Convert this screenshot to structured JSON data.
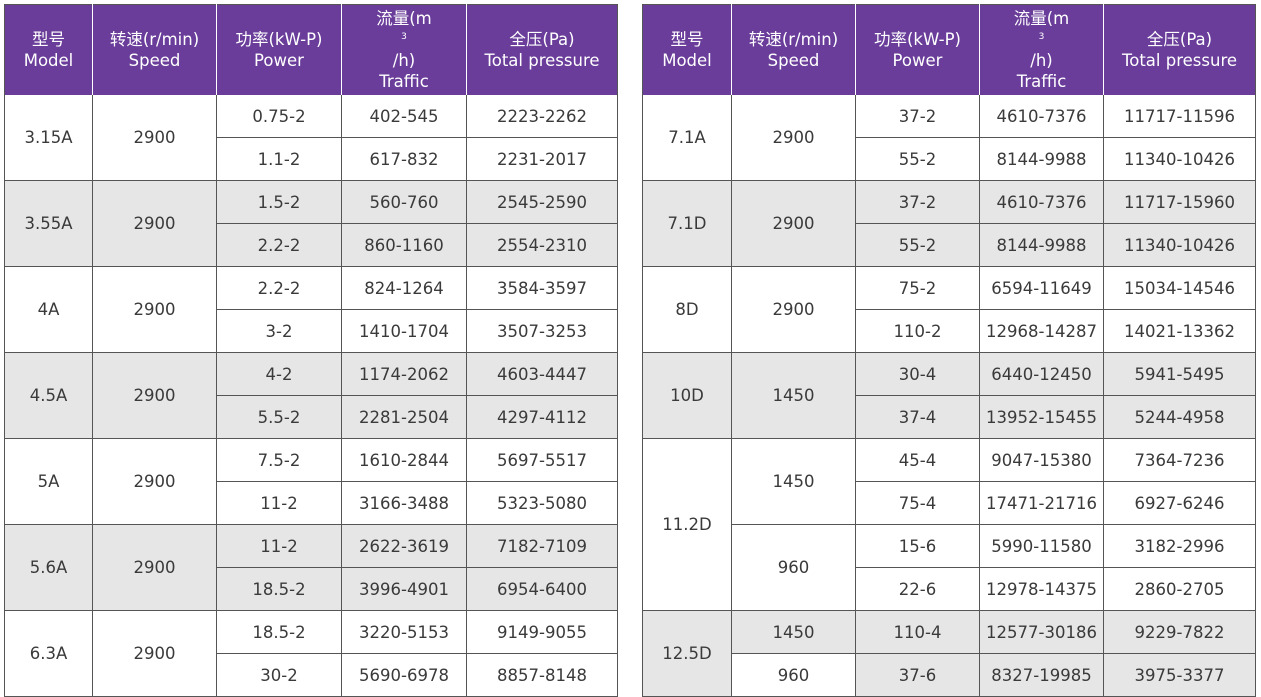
{
  "headers": [
    {
      "zh": "型号",
      "en": "Model"
    },
    {
      "zh": "转速(r/min)",
      "en": "Speed"
    },
    {
      "zh": "功率(kW-P)",
      "en": "Power"
    },
    {
      "zh": "流量(m",
      "sup": "3",
      "zh_tail": "/h)",
      "en": "Traffic"
    },
    {
      "zh": "全压(Pa)",
      "en": "Total pressure"
    }
  ],
  "left_groups": [
    {
      "model": "3.15A",
      "speed": "2900",
      "rows": [
        {
          "power": "0.75-2",
          "traffic": "402-545",
          "pressure": "2223-2262"
        },
        {
          "power": "1.1-2",
          "traffic": "617-832",
          "pressure": "2231-2017"
        }
      ]
    },
    {
      "model": "3.55A",
      "speed": "2900",
      "rows": [
        {
          "power": "1.5-2",
          "traffic": "560-760",
          "pressure": "2545-2590"
        },
        {
          "power": "2.2-2",
          "traffic": "860-1160",
          "pressure": "2554-2310"
        }
      ]
    },
    {
      "model": "4A",
      "speed": "2900",
      "rows": [
        {
          "power": "2.2-2",
          "traffic": "824-1264",
          "pressure": "3584-3597"
        },
        {
          "power": "3-2",
          "traffic": "1410-1704",
          "pressure": "3507-3253"
        }
      ]
    },
    {
      "model": "4.5A",
      "speed": "2900",
      "rows": [
        {
          "power": "4-2",
          "traffic": "1174-2062",
          "pressure": "4603-4447"
        },
        {
          "power": "5.5-2",
          "traffic": "2281-2504",
          "pressure": "4297-4112"
        }
      ]
    },
    {
      "model": "5A",
      "speed": "2900",
      "rows": [
        {
          "power": "7.5-2",
          "traffic": "1610-2844",
          "pressure": "5697-5517"
        },
        {
          "power": "11-2",
          "traffic": "3166-3488",
          "pressure": "5323-5080"
        }
      ]
    },
    {
      "model": "5.6A",
      "speed": "2900",
      "rows": [
        {
          "power": "11-2",
          "traffic": "2622-3619",
          "pressure": "7182-7109"
        },
        {
          "power": "18.5-2",
          "traffic": "3996-4901",
          "pressure": "6954-6400"
        }
      ]
    },
    {
      "model": "6.3A",
      "speed": "2900",
      "rows": [
        {
          "power": "18.5-2",
          "traffic": "3220-5153",
          "pressure": "9149-9055"
        },
        {
          "power": "30-2",
          "traffic": "5690-6978",
          "pressure": "8857-8148"
        }
      ]
    }
  ],
  "right_simple_groups": [
    {
      "model": "7.1A",
      "speed": "2900",
      "rows": [
        {
          "power": "37-2",
          "traffic": "4610-7376",
          "pressure": "11717-11596"
        },
        {
          "power": "55-2",
          "traffic": "8144-9988",
          "pressure": "11340-10426"
        }
      ]
    },
    {
      "model": "7.1D",
      "speed": "2900",
      "rows": [
        {
          "power": "37-2",
          "traffic": "4610-7376",
          "pressure": "11717-15960"
        },
        {
          "power": "55-2",
          "traffic": "8144-9988",
          "pressure": "11340-10426"
        }
      ]
    },
    {
      "model": "8D",
      "speed": "2900",
      "rows": [
        {
          "power": "75-2",
          "traffic": "6594-11649",
          "pressure": "15034-14546"
        },
        {
          "power": "110-2",
          "traffic": "12968-14287",
          "pressure": "14021-13362"
        }
      ]
    },
    {
      "model": "10D",
      "speed": "1450",
      "rows": [
        {
          "power": "30-4",
          "traffic": "6440-12450",
          "pressure": "5941-5495"
        },
        {
          "power": "37-4",
          "traffic": "13952-15455",
          "pressure": "5244-4958"
        }
      ]
    }
  ],
  "group_11_2d": {
    "model": "11.2D",
    "speed_a": "1450",
    "rows_a": [
      {
        "power": "45-4",
        "traffic": "9047-15380",
        "pressure": "7364-7236"
      },
      {
        "power": "75-4",
        "traffic": "17471-21716",
        "pressure": "6927-6246"
      }
    ],
    "speed_b": "960",
    "rows_b": [
      {
        "power": "15-6",
        "traffic": "5990-11580",
        "pressure": "3182-2996"
      },
      {
        "power": "22-6",
        "traffic": "12978-14375",
        "pressure": "2860-2705"
      }
    ]
  },
  "group_12_5d": {
    "model": "12.5D",
    "rows": [
      {
        "speed": "1450",
        "power": "110-4",
        "traffic": "12577-30186",
        "pressure": "9229-7822"
      },
      {
        "speed": "960",
        "power": "37-6",
        "traffic": "8327-19985",
        "pressure": "3975-3377"
      }
    ]
  },
  "colors": {
    "header_bg": "#6a3d9a",
    "row_shade": "#e6e6e6",
    "border": "#555555"
  }
}
